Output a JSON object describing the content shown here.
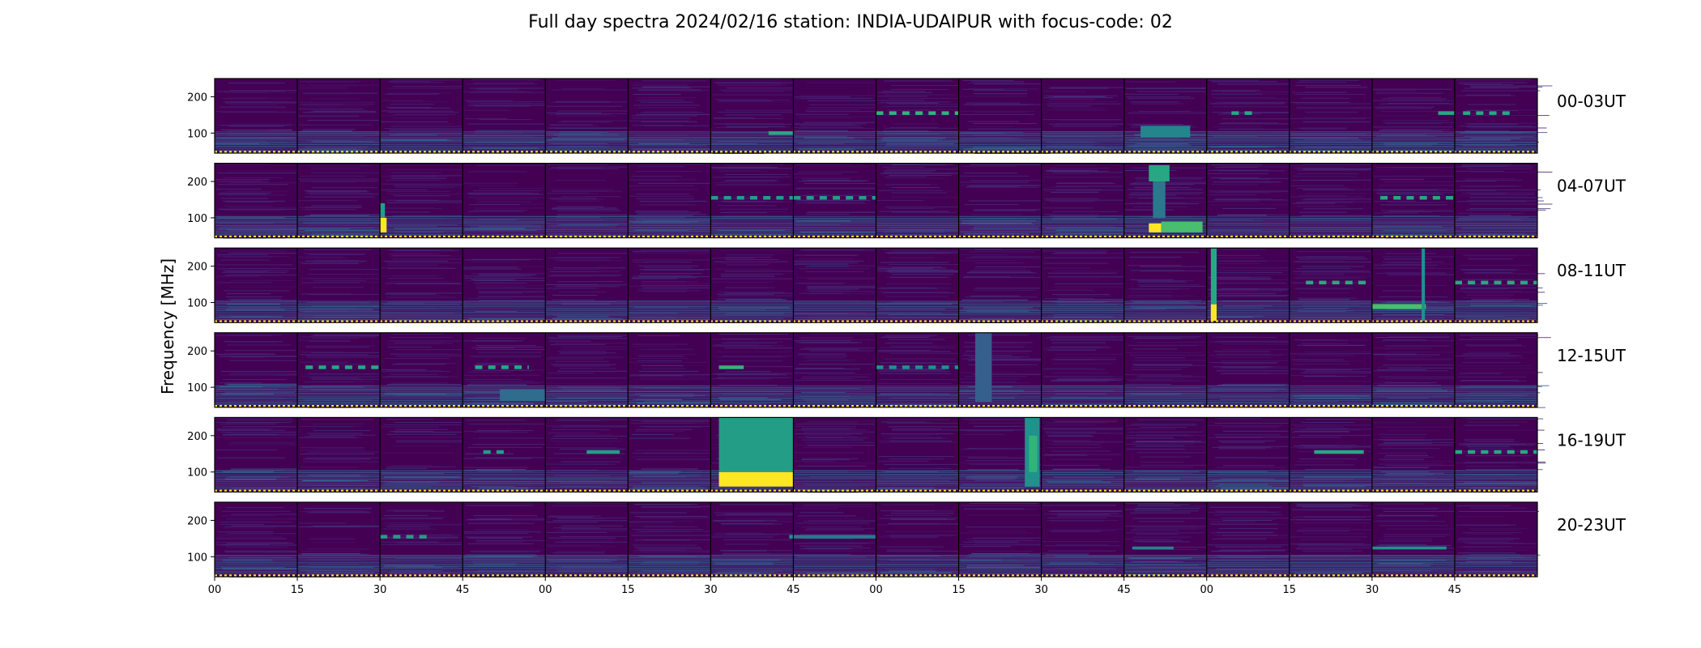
{
  "title": "Full day spectra 2024/02/16 station: INDIA-UDAIPUR with focus-code: 02",
  "colors": {
    "background": "#440154",
    "base_dark": "#45075a",
    "base_mid": "#472a7a",
    "teal": "#2a788e",
    "green": "#22a884",
    "light_green": "#7ad151",
    "yellow": "#fde725",
    "calibration_dots": "#fde725",
    "frame": "#000000"
  },
  "chart_data": {
    "type": "heatmap",
    "title": "Full day spectra 2024/02/16 station: INDIA-UDAIPUR with focus-code: 02",
    "ylabel": "Frequency [MHz]",
    "xlabel": "",
    "ylim": [
      45,
      250
    ],
    "y_ticks": [
      100,
      200
    ],
    "x_tick_labels": [
      "00",
      "15",
      "30",
      "45",
      "00",
      "15",
      "30",
      "45",
      "00",
      "15",
      "30",
      "45",
      "00",
      "15",
      "30",
      "45"
    ],
    "rows": [
      "00-03UT",
      "04-07UT",
      "08-11UT",
      "12-15UT",
      "16-19UT",
      "20-23UT"
    ],
    "panels_per_row": 16,
    "panel_minutes": 15,
    "events": [
      {
        "row": 0,
        "panel": 8,
        "f_low": 150,
        "f_high": 160,
        "start": 0.0,
        "end": 1.0,
        "intensity": 0.65,
        "dashed": true
      },
      {
        "row": 0,
        "panel": 6,
        "f_low": 95,
        "f_high": 105,
        "start": 0.7,
        "end": 1.0,
        "intensity": 0.6,
        "dashed": false
      },
      {
        "row": 0,
        "panel": 11,
        "f_low": 88,
        "f_high": 120,
        "start": 0.2,
        "end": 0.8,
        "intensity": 0.45,
        "dashed": false
      },
      {
        "row": 0,
        "panel": 12,
        "f_low": 150,
        "f_high": 160,
        "start": 0.3,
        "end": 0.6,
        "intensity": 0.6,
        "dashed": true
      },
      {
        "row": 0,
        "panel": 14,
        "f_low": 150,
        "f_high": 160,
        "start": 0.8,
        "end": 1.0,
        "intensity": 0.6,
        "dashed": false
      },
      {
        "row": 0,
        "panel": 15,
        "f_low": 150,
        "f_high": 160,
        "start": 0.1,
        "end": 0.7,
        "intensity": 0.6,
        "dashed": true
      },
      {
        "row": 1,
        "panel": 2,
        "f_low": 60,
        "f_high": 100,
        "start": 0.0,
        "end": 0.08,
        "intensity": 1.0,
        "dashed": false
      },
      {
        "row": 1,
        "panel": 2,
        "f_low": 100,
        "f_high": 140,
        "start": 0.0,
        "end": 0.06,
        "intensity": 0.55,
        "dashed": false
      },
      {
        "row": 1,
        "panel": 11,
        "f_low": 60,
        "f_high": 85,
        "start": 0.3,
        "end": 0.45,
        "intensity": 1.0,
        "dashed": false
      },
      {
        "row": 1,
        "panel": 11,
        "f_low": 60,
        "f_high": 90,
        "start": 0.45,
        "end": 0.95,
        "intensity": 0.7,
        "dashed": false
      },
      {
        "row": 1,
        "panel": 11,
        "f_low": 200,
        "f_high": 245,
        "start": 0.3,
        "end": 0.55,
        "intensity": 0.6,
        "dashed": false
      },
      {
        "row": 1,
        "panel": 11,
        "f_low": 100,
        "f_high": 200,
        "start": 0.35,
        "end": 0.5,
        "intensity": 0.4,
        "dashed": false
      },
      {
        "row": 1,
        "panel": 6,
        "f_low": 150,
        "f_high": 160,
        "start": 0.0,
        "end": 1.0,
        "intensity": 0.55,
        "dashed": true
      },
      {
        "row": 1,
        "panel": 7,
        "f_low": 150,
        "f_high": 160,
        "start": 0.0,
        "end": 1.0,
        "intensity": 0.55,
        "dashed": true
      },
      {
        "row": 1,
        "panel": 14,
        "f_low": 150,
        "f_high": 160,
        "start": 0.1,
        "end": 1.0,
        "intensity": 0.6,
        "dashed": true
      },
      {
        "row": 2,
        "panel": 12,
        "f_low": 60,
        "f_high": 250,
        "start": 0.05,
        "end": 0.12,
        "intensity": 0.6,
        "dashed": false
      },
      {
        "row": 2,
        "panel": 12,
        "f_low": 50,
        "f_high": 95,
        "start": 0.05,
        "end": 0.12,
        "intensity": 1.0,
        "dashed": false
      },
      {
        "row": 2,
        "panel": 13,
        "f_low": 150,
        "f_high": 160,
        "start": 0.2,
        "end": 1.0,
        "intensity": 0.6,
        "dashed": true
      },
      {
        "row": 2,
        "panel": 14,
        "f_low": 82,
        "f_high": 96,
        "start": 0.0,
        "end": 0.65,
        "intensity": 0.7,
        "dashed": false
      },
      {
        "row": 2,
        "panel": 14,
        "f_low": 50,
        "f_high": 250,
        "start": 0.6,
        "end": 0.64,
        "intensity": 0.5,
        "dashed": false
      },
      {
        "row": 2,
        "panel": 15,
        "f_low": 150,
        "f_high": 160,
        "start": 0.0,
        "end": 1.0,
        "intensity": 0.6,
        "dashed": true
      },
      {
        "row": 3,
        "panel": 1,
        "f_low": 150,
        "f_high": 160,
        "start": 0.1,
        "end": 1.0,
        "intensity": 0.6,
        "dashed": true
      },
      {
        "row": 3,
        "panel": 3,
        "f_low": 150,
        "f_high": 160,
        "start": 0.15,
        "end": 0.8,
        "intensity": 0.6,
        "dashed": true
      },
      {
        "row": 3,
        "panel": 3,
        "f_low": 62,
        "f_high": 95,
        "start": 0.45,
        "end": 1.0,
        "intensity": 0.35,
        "dashed": false
      },
      {
        "row": 3,
        "panel": 6,
        "f_low": 150,
        "f_high": 160,
        "start": 0.1,
        "end": 0.4,
        "intensity": 0.65,
        "dashed": false
      },
      {
        "row": 3,
        "panel": 8,
        "f_low": 150,
        "f_high": 160,
        "start": 0.0,
        "end": 1.0,
        "intensity": 0.5,
        "dashed": true
      },
      {
        "row": 3,
        "panel": 9,
        "f_low": 60,
        "f_high": 250,
        "start": 0.2,
        "end": 0.4,
        "intensity": 0.3,
        "dashed": false
      },
      {
        "row": 4,
        "panel": 6,
        "f_low": 60,
        "f_high": 100,
        "start": 0.1,
        "end": 1.0,
        "intensity": 1.0,
        "dashed": false
      },
      {
        "row": 4,
        "panel": 6,
        "f_low": 100,
        "f_high": 250,
        "start": 0.1,
        "end": 1.0,
        "intensity": 0.55,
        "dashed": false
      },
      {
        "row": 4,
        "panel": 9,
        "f_low": 60,
        "f_high": 250,
        "start": 0.8,
        "end": 0.98,
        "intensity": 0.5,
        "dashed": false
      },
      {
        "row": 4,
        "panel": 9,
        "f_low": 100,
        "f_high": 200,
        "start": 0.85,
        "end": 0.95,
        "intensity": 0.65,
        "dashed": false
      },
      {
        "row": 4,
        "panel": 13,
        "f_low": 150,
        "f_high": 160,
        "start": 0.3,
        "end": 0.9,
        "intensity": 0.6,
        "dashed": false
      },
      {
        "row": 4,
        "panel": 15,
        "f_low": 150,
        "f_high": 160,
        "start": 0.0,
        "end": 1.0,
        "intensity": 0.6,
        "dashed": true
      },
      {
        "row": 4,
        "panel": 3,
        "f_low": 150,
        "f_high": 160,
        "start": 0.25,
        "end": 0.5,
        "intensity": 0.55,
        "dashed": true
      },
      {
        "row": 4,
        "panel": 4,
        "f_low": 150,
        "f_high": 160,
        "start": 0.5,
        "end": 0.9,
        "intensity": 0.55,
        "dashed": false
      },
      {
        "row": 5,
        "panel": 2,
        "f_low": 150,
        "f_high": 160,
        "start": 0.0,
        "end": 0.6,
        "intensity": 0.55,
        "dashed": true
      },
      {
        "row": 5,
        "panel": 6,
        "f_low": 150,
        "f_high": 160,
        "start": 0.95,
        "end": 1.0,
        "intensity": 0.5,
        "dashed": false
      },
      {
        "row": 5,
        "panel": 7,
        "f_low": 150,
        "f_high": 160,
        "start": 0.0,
        "end": 1.0,
        "intensity": 0.4,
        "dashed": false
      },
      {
        "row": 5,
        "panel": 11,
        "f_low": 120,
        "f_high": 128,
        "start": 0.1,
        "end": 0.6,
        "intensity": 0.45,
        "dashed": false
      },
      {
        "row": 5,
        "panel": 14,
        "f_low": 120,
        "f_high": 128,
        "start": 0.0,
        "end": 0.9,
        "intensity": 0.5,
        "dashed": false
      }
    ]
  }
}
